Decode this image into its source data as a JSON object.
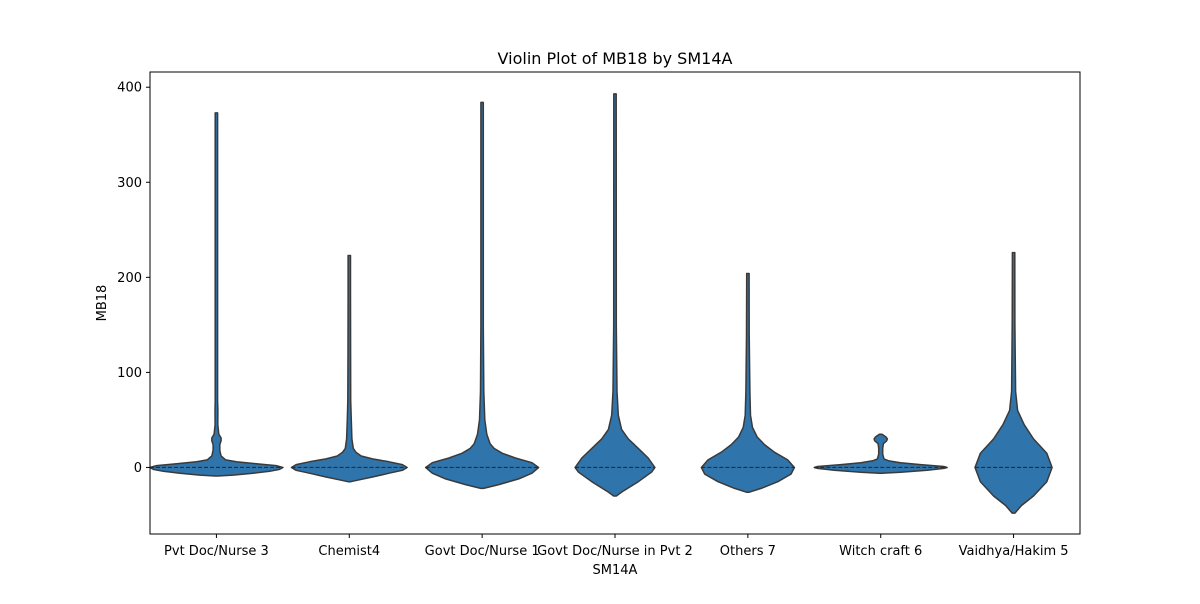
{
  "chart_data": {
    "type": "violin",
    "title": "Violin Plot of MB18 by SM14A",
    "xlabel": "SM14A",
    "ylabel": "MB18",
    "ylim": [
      -70,
      416
    ],
    "yticks": [
      0,
      100,
      200,
      300,
      400
    ],
    "grid": false,
    "inner": "quartile",
    "color": "#2f74ab",
    "edge_color": "#3a3a3a",
    "categories": [
      "Pvt Doc/Nurse 3",
      "Chemist4",
      "Govt Doc/Nurse 1",
      "Govt Doc/Nurse in Pvt 2",
      "Others 7",
      "Witch craft 6",
      "Vaidhya/Hakim 5"
    ],
    "violins": [
      {
        "category": "Pvt Doc/Nurse 3",
        "min": -9,
        "max": 373,
        "median": 0,
        "profile": [
          [
            -9,
            0.02
          ],
          [
            -8,
            0.25
          ],
          [
            -6,
            0.55
          ],
          [
            -4,
            0.8
          ],
          [
            -2,
            0.95
          ],
          [
            0,
            1.0
          ],
          [
            2,
            0.9
          ],
          [
            4,
            0.6
          ],
          [
            6,
            0.3
          ],
          [
            8,
            0.14
          ],
          [
            12,
            0.07
          ],
          [
            18,
            0.05
          ],
          [
            24,
            0.05
          ],
          [
            28,
            0.07
          ],
          [
            31,
            0.07
          ],
          [
            35,
            0.035
          ],
          [
            45,
            0.02
          ],
          [
            60,
            0.022
          ],
          [
            70,
            0.015
          ],
          [
            90,
            0.012
          ],
          [
            120,
            0.01
          ],
          [
            200,
            0.01
          ],
          [
            373,
            0.01
          ]
        ]
      },
      {
        "category": "Chemist4",
        "min": -15,
        "max": 223,
        "median": 0,
        "profile": [
          [
            -15,
            0.02
          ],
          [
            -13,
            0.15
          ],
          [
            -10,
            0.35
          ],
          [
            -6,
            0.6
          ],
          [
            -3,
            0.8
          ],
          [
            0,
            0.87
          ],
          [
            3,
            0.8
          ],
          [
            6,
            0.6
          ],
          [
            9,
            0.35
          ],
          [
            12,
            0.18
          ],
          [
            16,
            0.1
          ],
          [
            20,
            0.06
          ],
          [
            30,
            0.04
          ],
          [
            50,
            0.03
          ],
          [
            70,
            0.022
          ],
          [
            120,
            0.02
          ],
          [
            180,
            0.015
          ],
          [
            223,
            0.012
          ]
        ]
      },
      {
        "category": "Govt Doc/Nurse 1",
        "min": -22,
        "max": 384,
        "median": 0,
        "profile": [
          [
            -22,
            0.02
          ],
          [
            -18,
            0.25
          ],
          [
            -12,
            0.55
          ],
          [
            -6,
            0.75
          ],
          [
            0,
            0.85
          ],
          [
            5,
            0.75
          ],
          [
            10,
            0.5
          ],
          [
            15,
            0.3
          ],
          [
            20,
            0.18
          ],
          [
            25,
            0.12
          ],
          [
            35,
            0.07
          ],
          [
            50,
            0.04
          ],
          [
            80,
            0.025
          ],
          [
            150,
            0.015
          ],
          [
            384,
            0.01
          ]
        ]
      },
      {
        "category": "Govt Doc/Nurse in Pvt 2",
        "min": -30,
        "max": 393,
        "median": 0,
        "profile": [
          [
            -30,
            0.02
          ],
          [
            -25,
            0.12
          ],
          [
            -15,
            0.35
          ],
          [
            -5,
            0.55
          ],
          [
            0,
            0.6
          ],
          [
            10,
            0.5
          ],
          [
            20,
            0.35
          ],
          [
            30,
            0.2
          ],
          [
            40,
            0.1
          ],
          [
            55,
            0.05
          ],
          [
            80,
            0.03
          ],
          [
            150,
            0.02
          ],
          [
            393,
            0.01
          ]
        ]
      },
      {
        "category": "Others 7",
        "min": -26,
        "max": 204,
        "median": 0,
        "profile": [
          [
            -26,
            0.02
          ],
          [
            -22,
            0.2
          ],
          [
            -15,
            0.45
          ],
          [
            -7,
            0.65
          ],
          [
            0,
            0.7
          ],
          [
            8,
            0.6
          ],
          [
            16,
            0.4
          ],
          [
            24,
            0.25
          ],
          [
            32,
            0.14
          ],
          [
            42,
            0.07
          ],
          [
            55,
            0.04
          ],
          [
            80,
            0.03
          ],
          [
            140,
            0.02
          ],
          [
            204,
            0.015
          ]
        ]
      },
      {
        "category": "Witch craft 6",
        "min": -6,
        "max": 35,
        "median": 0,
        "profile": [
          [
            -6,
            0.02
          ],
          [
            -5,
            0.3
          ],
          [
            -3,
            0.7
          ],
          [
            -1,
            0.95
          ],
          [
            0,
            1.0
          ],
          [
            1,
            0.95
          ],
          [
            3,
            0.6
          ],
          [
            5,
            0.3
          ],
          [
            7,
            0.12
          ],
          [
            9,
            0.05
          ],
          [
            14,
            0.03
          ],
          [
            20,
            0.03
          ],
          [
            25,
            0.04
          ],
          [
            28,
            0.09
          ],
          [
            30,
            0.1
          ],
          [
            32,
            0.08
          ],
          [
            35,
            0.02
          ]
        ]
      },
      {
        "category": "Vaidhya/Hakim 5",
        "min": -48,
        "max": 226,
        "median": 0,
        "profile": [
          [
            -48,
            0.02
          ],
          [
            -40,
            0.12
          ],
          [
            -30,
            0.3
          ],
          [
            -15,
            0.5
          ],
          [
            0,
            0.58
          ],
          [
            15,
            0.5
          ],
          [
            30,
            0.3
          ],
          [
            45,
            0.16
          ],
          [
            60,
            0.06
          ],
          [
            80,
            0.03
          ],
          [
            150,
            0.02
          ],
          [
            226,
            0.015
          ]
        ]
      }
    ]
  }
}
